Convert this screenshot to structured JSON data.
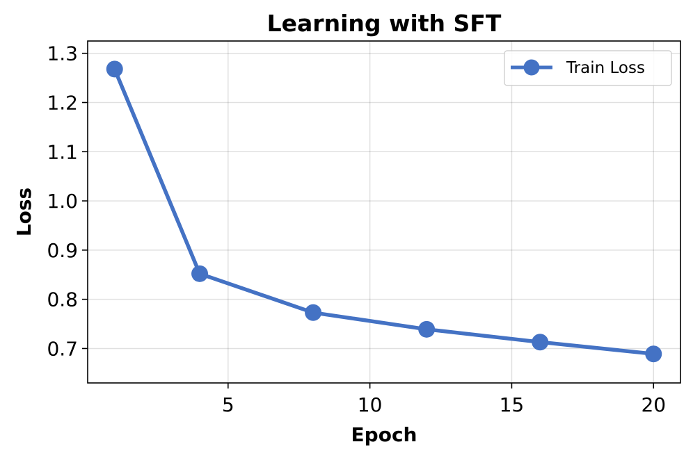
{
  "chart_data": {
    "type": "line",
    "title": "Learning with SFT",
    "xlabel": "Epoch",
    "ylabel": "Loss",
    "xlim": [
      0.05,
      20.95
    ],
    "ylim": [
      0.63,
      1.325
    ],
    "x_ticks": [
      5,
      10,
      15,
      20
    ],
    "y_ticks": [
      0.7,
      0.8,
      0.9,
      1.0,
      1.1,
      1.2,
      1.3
    ],
    "x_tick_labels": [
      "5",
      "10",
      "15",
      "20"
    ],
    "y_tick_labels": [
      "0.7",
      "0.8",
      "0.9",
      "1.0",
      "1.1",
      "1.2",
      "1.3"
    ],
    "grid": true,
    "legend_position": "top-right",
    "series": [
      {
        "name": "Train Loss",
        "color": "#4472C4",
        "marker": "circle",
        "x": [
          1,
          4,
          8,
          12,
          16,
          20
        ],
        "y": [
          1.268,
          0.852,
          0.773,
          0.739,
          0.713,
          0.689
        ]
      }
    ]
  }
}
